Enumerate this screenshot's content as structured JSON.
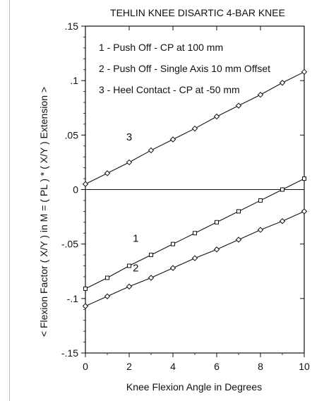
{
  "chart_data": {
    "type": "line",
    "title": "TEHLIN KNEE DISARTIC 4-BAR KNEE",
    "xlabel": "Knee Flexion Angle in Degrees",
    "ylabel": "< Flexion   Factor ( X/Y ) in M = ( PL ) * ( X/Y )   Extension >",
    "xlim": [
      0,
      10
    ],
    "ylim": [
      -0.15,
      0.15
    ],
    "x_ticks": [
      0,
      2,
      4,
      6,
      8,
      10
    ],
    "x_tick_labels": [
      "0",
      "2",
      "4",
      "6",
      "8",
      "10"
    ],
    "y_ticks": [
      0.15,
      0.1,
      0.05,
      0,
      -0.05,
      -0.1,
      -0.15
    ],
    "y_tick_labels": [
      ".15",
      ".1",
      ".05",
      "0",
      "-.05",
      "-.1",
      "-.15"
    ],
    "grid": false,
    "zero_line": true,
    "legend": {
      "placement": "top-left",
      "entries": [
        "1 - Push Off - CP at 100 mm",
        "2 - Push Off - Single Axis 10 mm Offset",
        "3 - Heel Contact - CP at -50 mm"
      ]
    },
    "series": [
      {
        "name": "1",
        "marker": "square",
        "x": [
          0,
          1,
          2,
          3,
          4,
          5,
          6,
          7,
          8,
          9,
          10
        ],
        "y": [
          -0.091,
          -0.081,
          -0.07,
          -0.06,
          -0.05,
          -0.04,
          -0.03,
          -0.02,
          -0.01,
          0.0,
          0.01
        ]
      },
      {
        "name": "2",
        "marker": "diamond",
        "x": [
          0,
          1,
          2,
          3,
          4,
          5,
          6,
          7,
          8,
          9,
          10
        ],
        "y": [
          -0.107,
          -0.098,
          -0.089,
          -0.081,
          -0.072,
          -0.063,
          -0.055,
          -0.046,
          -0.037,
          -0.029,
          -0.02
        ]
      },
      {
        "name": "3",
        "marker": "diamond",
        "x": [
          0,
          1,
          2,
          3,
          4,
          5,
          6,
          7,
          8,
          9,
          10
        ],
        "y": [
          0.005,
          0.015,
          0.025,
          0.036,
          0.046,
          0.056,
          0.067,
          0.077,
          0.087,
          0.098,
          0.108
        ]
      }
    ],
    "curve_labels": [
      {
        "text": "3",
        "x": 2.0,
        "y": 0.045
      },
      {
        "text": "1",
        "x": 2.3,
        "y": -0.048
      },
      {
        "text": "2",
        "x": 2.3,
        "y": -0.075
      }
    ]
  }
}
